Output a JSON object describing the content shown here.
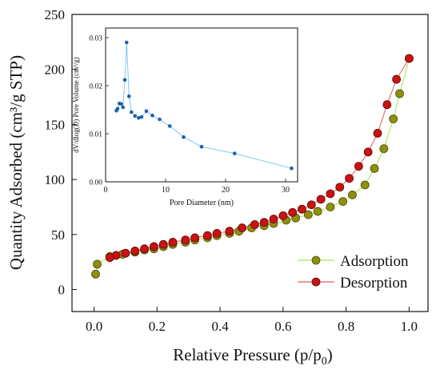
{
  "chart_data": [
    {
      "type": "scatter",
      "xlabel": "Relative Pressure (p/p0)",
      "xlabel_main": "Relative Pressure (p/p",
      "xlabel_sub": "0",
      "xlabel_close": ")",
      "ylabel": "Quantity Adsorbed (cm³/g STP)",
      "xlim": [
        -0.07,
        1.06
      ],
      "ylim": [
        -20,
        250
      ],
      "xticks": [
        "0.0",
        "0.2",
        "0.4",
        "0.6",
        "0.8",
        "1.0"
      ],
      "xtick_values": [
        0.0,
        0.2,
        0.4,
        0.6,
        0.8,
        1.0
      ],
      "yticks": [
        "0",
        "50",
        "100",
        "150",
        "200",
        "250"
      ],
      "ytick_values": [
        0,
        50,
        100,
        150,
        200,
        250
      ],
      "grid": false,
      "legend_position": "bottom-right",
      "series": [
        {
          "name": "Adsorption",
          "line_color": "#b5ea7a",
          "marker_color": "#8f8f0c",
          "x": [
            0.005,
            0.01,
            0.05,
            0.09,
            0.13,
            0.16,
            0.19,
            0.22,
            0.25,
            0.29,
            0.32,
            0.36,
            0.39,
            0.43,
            0.46,
            0.5,
            0.54,
            0.57,
            0.61,
            0.64,
            0.68,
            0.71,
            0.75,
            0.79,
            0.82,
            0.86,
            0.89,
            0.92,
            0.95,
            0.97,
            1.0
          ],
          "y": [
            14,
            23,
            30,
            32,
            34,
            36,
            37,
            39,
            41,
            43,
            45,
            47,
            49,
            51,
            53,
            56,
            58,
            60,
            63,
            65,
            68,
            71,
            75,
            80,
            86,
            95,
            110,
            128,
            155,
            178,
            210
          ]
        },
        {
          "name": "Desorption",
          "line_color": "#f07a7a",
          "marker_color": "#cc1111",
          "x": [
            1.0,
            0.96,
            0.93,
            0.9,
            0.87,
            0.84,
            0.81,
            0.78,
            0.75,
            0.72,
            0.69,
            0.66,
            0.63,
            0.6,
            0.57,
            0.54,
            0.51,
            0.47,
            0.43,
            0.39,
            0.36,
            0.32,
            0.29,
            0.25,
            0.22,
            0.19,
            0.16,
            0.13,
            0.1,
            0.07,
            0.05
          ],
          "y": [
            210,
            191,
            168,
            142,
            125,
            112,
            101,
            93,
            87,
            82,
            77,
            73,
            70,
            67,
            64,
            61,
            59,
            56,
            53,
            51,
            49,
            47,
            45,
            43,
            41,
            39,
            37,
            35,
            33,
            31,
            29
          ]
        }
      ]
    },
    {
      "type": "line",
      "xlabel": "Pore Diameter (nm)",
      "ylabel": "dV/dlog(D) Pore Volume (cm³/g)",
      "xlim": [
        0,
        32
      ],
      "ylim": [
        0,
        0.032
      ],
      "xticks": [
        "0",
        "10",
        "20",
        "30"
      ],
      "xtick_values": [
        0,
        10,
        20,
        30
      ],
      "yticks": [
        "0.00",
        "0.01",
        "0.02",
        "0.03"
      ],
      "ytick_values": [
        0,
        0.01,
        0.02,
        0.03
      ],
      "grid": false,
      "line_color": "#7fc8ee",
      "marker_color": "#1f5fae",
      "x": [
        1.8,
        2.0,
        2.3,
        2.6,
        2.9,
        3.2,
        3.5,
        3.9,
        4.3,
        4.9,
        5.5,
        6.0,
        6.8,
        7.8,
        9.0,
        10.7,
        13.0,
        16.0,
        21.5,
        31.0
      ],
      "y": [
        0.0148,
        0.0152,
        0.0163,
        0.0162,
        0.0155,
        0.0212,
        0.029,
        0.0178,
        0.0145,
        0.0137,
        0.0133,
        0.0135,
        0.0147,
        0.0138,
        0.013,
        0.0116,
        0.0093,
        0.0073,
        0.0059,
        0.0028
      ]
    }
  ]
}
